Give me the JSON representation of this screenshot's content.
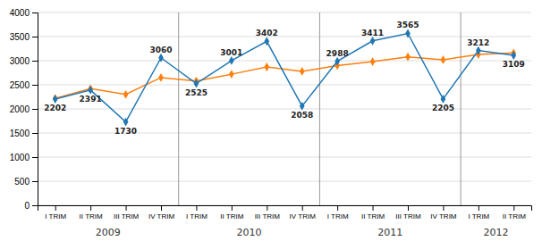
{
  "chart_data": {
    "type": "line",
    "categories": [
      "I TRIM",
      "II TRIM",
      "III TRIM",
      "IV TRIM",
      "I TRIM",
      "II TRIM",
      "III TRIM",
      "IV TRIM",
      "I TRIM",
      "II TRIM",
      "III TRIM",
      "IV TRIM",
      "I TRIM",
      "II TRIM"
    ],
    "series": [
      {
        "values": [
          2202,
          2391,
          1730,
          3060,
          2525,
          3001,
          3402,
          2058,
          2988,
          3411,
          3565,
          2205,
          3212,
          3109
        ],
        "marker": "diamond",
        "data_labels": true
      },
      {
        "values": [
          2220,
          2420,
          2300,
          2650,
          2580,
          2720,
          2870,
          2780,
          2900,
          2980,
          3080,
          3020,
          3130,
          3160
        ],
        "marker": "diamond"
      }
    ],
    "annotations": [
      {
        "text": "2009",
        "x": 1.5
      },
      {
        "text": "2010",
        "x": 5.5
      },
      {
        "text": "2011",
        "x": 9.5
      },
      {
        "text": "2012",
        "x": 12.5
      }
    ],
    "x_separators": [
      3.5,
      7.5,
      11.5
    ],
    "ylim": [
      0,
      4000
    ],
    "yticks": [
      0,
      500,
      1000,
      1500,
      2000,
      2500,
      3000,
      3500,
      4000
    ],
    "grid": true
  }
}
